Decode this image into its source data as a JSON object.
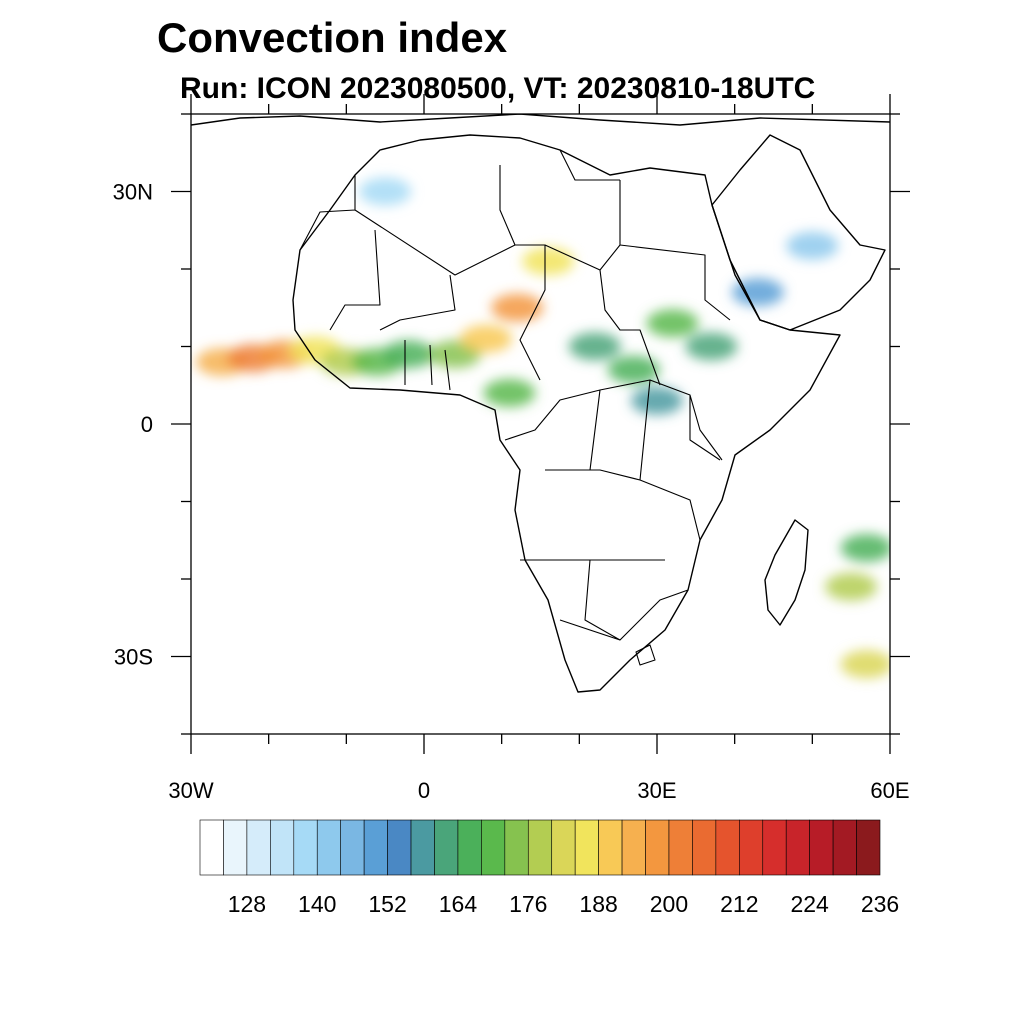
{
  "title": "Convection index",
  "subtitle": "Run: ICON 2023080500,  VT: 20230810-18UTC",
  "map": {
    "lon_range": [
      -30,
      60
    ],
    "lat_range": [
      -40,
      40
    ],
    "lon_ticks": [
      {
        "value": -30,
        "label": "30W"
      },
      {
        "value": 0,
        "label": "0"
      },
      {
        "value": 30,
        "label": "30E"
      },
      {
        "value": 60,
        "label": "60E"
      }
    ],
    "lat_ticks": [
      {
        "value": 30,
        "label": "30N"
      },
      {
        "value": 0,
        "label": "0"
      },
      {
        "value": -30,
        "label": "30S"
      }
    ],
    "minor_lon_step": 10,
    "minor_lat_step": 10,
    "convection_cells": [
      {
        "lon": -26,
        "lat": 8,
        "value": 192
      },
      {
        "lon": -22,
        "lat": 8.5,
        "value": 200
      },
      {
        "lon": -18,
        "lat": 9,
        "value": 196
      },
      {
        "lon": -14,
        "lat": 9.5,
        "value": 186
      },
      {
        "lon": -10,
        "lat": 8,
        "value": 176
      },
      {
        "lon": -6,
        "lat": 8,
        "value": 170
      },
      {
        "lon": -2,
        "lat": 9,
        "value": 164
      },
      {
        "lon": 4,
        "lat": 9,
        "value": 174
      },
      {
        "lon": 8,
        "lat": 11,
        "value": 188
      },
      {
        "lon": 12,
        "lat": 15,
        "value": 196
      },
      {
        "lon": 16,
        "lat": 21,
        "value": 186
      },
      {
        "lon": 11,
        "lat": 4,
        "value": 170
      },
      {
        "lon": 22,
        "lat": 10,
        "value": 162
      },
      {
        "lon": 27,
        "lat": 7,
        "value": 164
      },
      {
        "lon": 32,
        "lat": 13,
        "value": 170
      },
      {
        "lon": 37,
        "lat": 10,
        "value": 160
      },
      {
        "lon": 30,
        "lat": 3,
        "value": 156
      },
      {
        "lon": 43,
        "lat": 17,
        "value": 150
      },
      {
        "lon": 50,
        "lat": 23,
        "value": 140
      },
      {
        "lon": -5,
        "lat": 30,
        "value": 138
      },
      {
        "lon": 57,
        "lat": -16,
        "value": 166
      },
      {
        "lon": 55,
        "lat": -21,
        "value": 176
      },
      {
        "lon": 57,
        "lat": -31,
        "value": 180
      }
    ]
  },
  "colorbar": {
    "colors": [
      "#ffffff",
      "#e9f5fc",
      "#d5ecfa",
      "#c1e4f8",
      "#a6daf6",
      "#8ec9ed",
      "#7ab7e3",
      "#5a9fd6",
      "#4a88c4",
      "#4b9aa1",
      "#4aa57a",
      "#4bb05a",
      "#5ab94c",
      "#86c24f",
      "#b3cd52",
      "#dad658",
      "#f1e45c",
      "#f8c956",
      "#f6b04f",
      "#f3973f",
      "#ee7f37",
      "#ea6b31",
      "#e5542d",
      "#de3f2c",
      "#d62e2c",
      "#c8242a",
      "#b71c27",
      "#a31a23",
      "#8b1a1d"
    ],
    "labels": [
      "128",
      "140",
      "152",
      "164",
      "176",
      "188",
      "200",
      "212",
      "224",
      "236"
    ]
  }
}
